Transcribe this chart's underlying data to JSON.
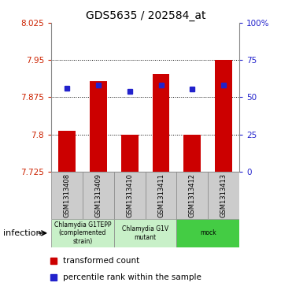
{
  "title": "GDS5635 / 202584_at",
  "samples": [
    "GSM1313408",
    "GSM1313409",
    "GSM1313410",
    "GSM1313411",
    "GSM1313412",
    "GSM1313413"
  ],
  "bar_values": [
    7.807,
    7.907,
    7.8,
    7.921,
    7.799,
    7.95
  ],
  "percentile_values": [
    7.893,
    7.9,
    7.887,
    7.9,
    7.891,
    7.9
  ],
  "y_min": 7.725,
  "y_max": 8.025,
  "y_ticks": [
    7.725,
    7.8,
    7.875,
    7.95,
    8.025
  ],
  "y_tick_labels": [
    "7.725",
    "7.8",
    "7.875",
    "7.95",
    "8.025"
  ],
  "bar_color": "#CC0000",
  "percentile_color": "#2222CC",
  "right_ticks_pct": [
    0,
    25,
    50,
    75,
    100
  ],
  "right_tick_labels": [
    "0",
    "25",
    "50",
    "75",
    "100%"
  ],
  "group_ranges": [
    [
      0,
      2
    ],
    [
      2,
      4
    ],
    [
      4,
      6
    ]
  ],
  "group_labels": [
    "Chlamydia G1TEPP\n(complemented\nstrain)",
    "Chlamydia G1V\nmutant",
    "mock"
  ],
  "group_colors": [
    "#c8f0c8",
    "#c8f0c8",
    "#44cc44"
  ],
  "sample_bg_color": "#cccccc",
  "infection_label": "infection",
  "legend_bar_label": "transformed count",
  "legend_pct_label": "percentile rank within the sample"
}
